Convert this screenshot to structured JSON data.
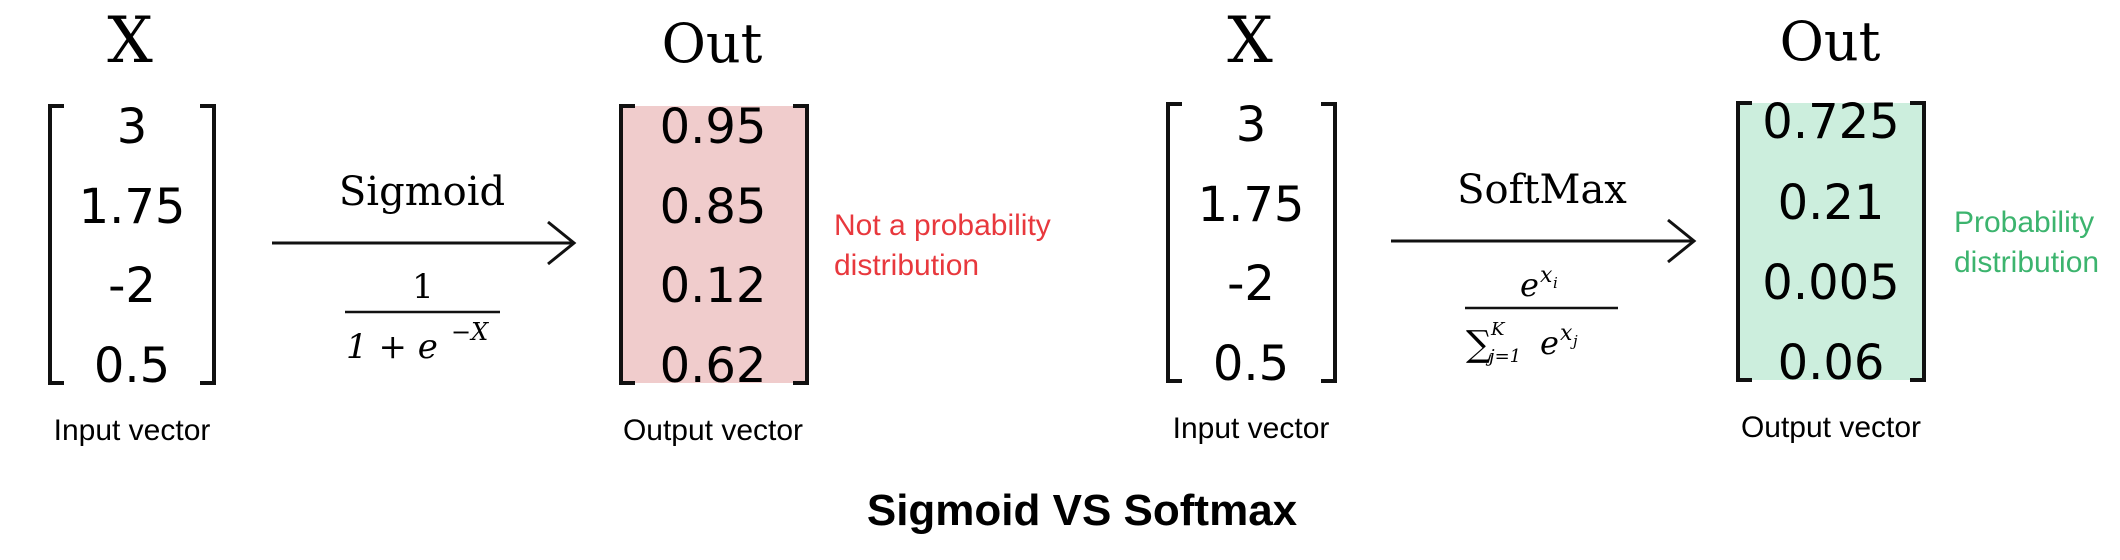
{
  "left_panel": {
    "input_header": "X",
    "input_values": [
      "3",
      "1.75",
      "-2",
      "0.5"
    ],
    "input_caption": "Input vector",
    "function_name": "Sigmoid",
    "formula": {
      "numerator": "1",
      "denominator_prefix": "1 + e",
      "exponent": "−X"
    },
    "output_header": "Out",
    "output_values": [
      "0.95",
      "0.85",
      "0.12",
      "0.62"
    ],
    "output_caption": "Output vector",
    "note_lines": [
      "Not a probability",
      "distribution"
    ],
    "output_fill": "#f0cccc",
    "note_color": "#e8383d"
  },
  "right_panel": {
    "input_header": "X",
    "input_values": [
      "3",
      "1.75",
      "-2",
      "0.5"
    ],
    "input_caption": "Input vector",
    "function_name": "SoftMax",
    "formula": {
      "numerator_base": "e",
      "numerator_exp": "x",
      "numerator_exp_sub": "i",
      "sum_symbol": "∑",
      "sum_upper": "K",
      "sum_lower": "j=1",
      "denominator_base": "e",
      "denominator_exp": "x",
      "denominator_exp_sub": "j"
    },
    "output_header": "Out",
    "output_values": [
      "0.725",
      "0.21",
      "0.005",
      "0.06"
    ],
    "output_caption": "Output vector",
    "note_lines": [
      "Probability",
      "distribution"
    ],
    "output_fill": "#cceedd",
    "note_color": "#3cb46e"
  },
  "title": "Sigmoid VS Softmax"
}
